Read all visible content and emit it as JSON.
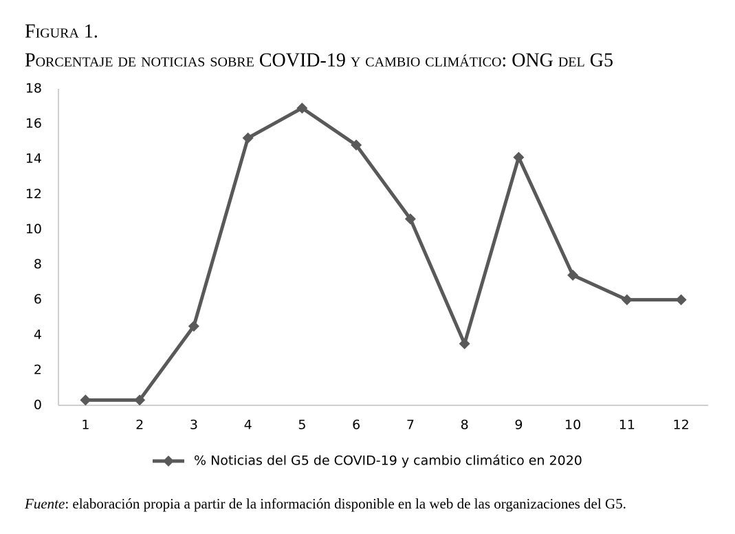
{
  "chart_data": {
    "type": "line",
    "title": "Figura 1.",
    "subtitle": "Porcentaje de noticias sobre COVID-19 y cambio climático: ONG del G5",
    "categories": [
      "1",
      "2",
      "3",
      "4",
      "5",
      "6",
      "7",
      "8",
      "9",
      "10",
      "11",
      "12"
    ],
    "series": [
      {
        "name": "% Noticias del G5 de COVID-19 y cambio climático en 2020",
        "color": "#595959",
        "values": [
          0.3,
          0.3,
          4.5,
          15.2,
          16.9,
          14.8,
          10.6,
          3.5,
          14.1,
          7.4,
          6.0,
          6.0
        ]
      }
    ],
    "ylim": [
      0,
      18
    ],
    "yticks": [
      0,
      2,
      4,
      6,
      8,
      10,
      12,
      14,
      16,
      18
    ],
    "grid": false,
    "legend": "bottom",
    "source_label": "Fuente",
    "source_text": ": elaboración propia a partir de la información disponible en la web de las organizaciones del G5."
  }
}
